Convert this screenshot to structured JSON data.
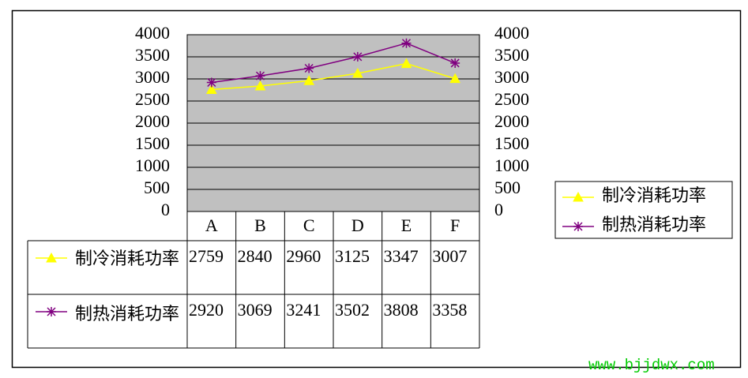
{
  "chart_data": {
    "type": "line",
    "categories": [
      "A",
      "B",
      "C",
      "D",
      "E",
      "F"
    ],
    "series": [
      {
        "name": "制冷消耗功率",
        "color": "#ffff00",
        "marker": "triangle",
        "values": [
          2759,
          2840,
          2960,
          3125,
          3347,
          3007
        ]
      },
      {
        "name": "制热消耗功率",
        "color": "#800080",
        "marker": "star",
        "values": [
          2920,
          3069,
          3241,
          3502,
          3808,
          3358
        ]
      }
    ],
    "ylim": [
      0,
      4000
    ],
    "yticks": [
      0,
      500,
      1000,
      1500,
      2000,
      2500,
      3000,
      3500,
      4000
    ],
    "y2lim": [
      0,
      4000
    ],
    "y2ticks": [
      0,
      500,
      1000,
      1500,
      2000,
      2500,
      3000,
      3500,
      4000
    ],
    "grid": true,
    "plot_background": "#c0c0c0",
    "data_table": true,
    "legend": "right"
  },
  "watermark": "www.bjjdwx.com"
}
